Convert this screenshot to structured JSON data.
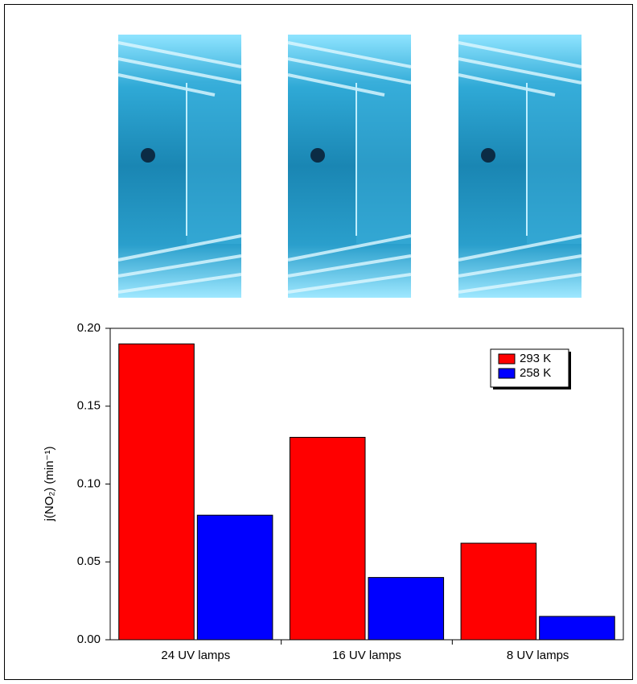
{
  "chart_data": {
    "type": "bar",
    "y_label": "j(NO₂) (min⁻¹)",
    "categories": [
      "24 UV lamps",
      "16 UV lamps",
      "8 UV lamps"
    ],
    "series": [
      {
        "name": "293 K",
        "color": "#ff0000",
        "values": [
          0.19,
          0.13,
          0.062
        ]
      },
      {
        "name": "258 K",
        "color": "#0000ff",
        "values": [
          0.08,
          0.04,
          0.015
        ]
      }
    ],
    "ylim": [
      0,
      0.2
    ],
    "yticks": [
      {
        "value": 0,
        "label": "0.00"
      },
      {
        "value": 0.05,
        "label": "0.05"
      },
      {
        "value": 0.1,
        "label": "0.10"
      },
      {
        "value": 0.15,
        "label": "0.15"
      },
      {
        "value": 0.2,
        "label": "0.20"
      }
    ],
    "legend": "top-right"
  }
}
